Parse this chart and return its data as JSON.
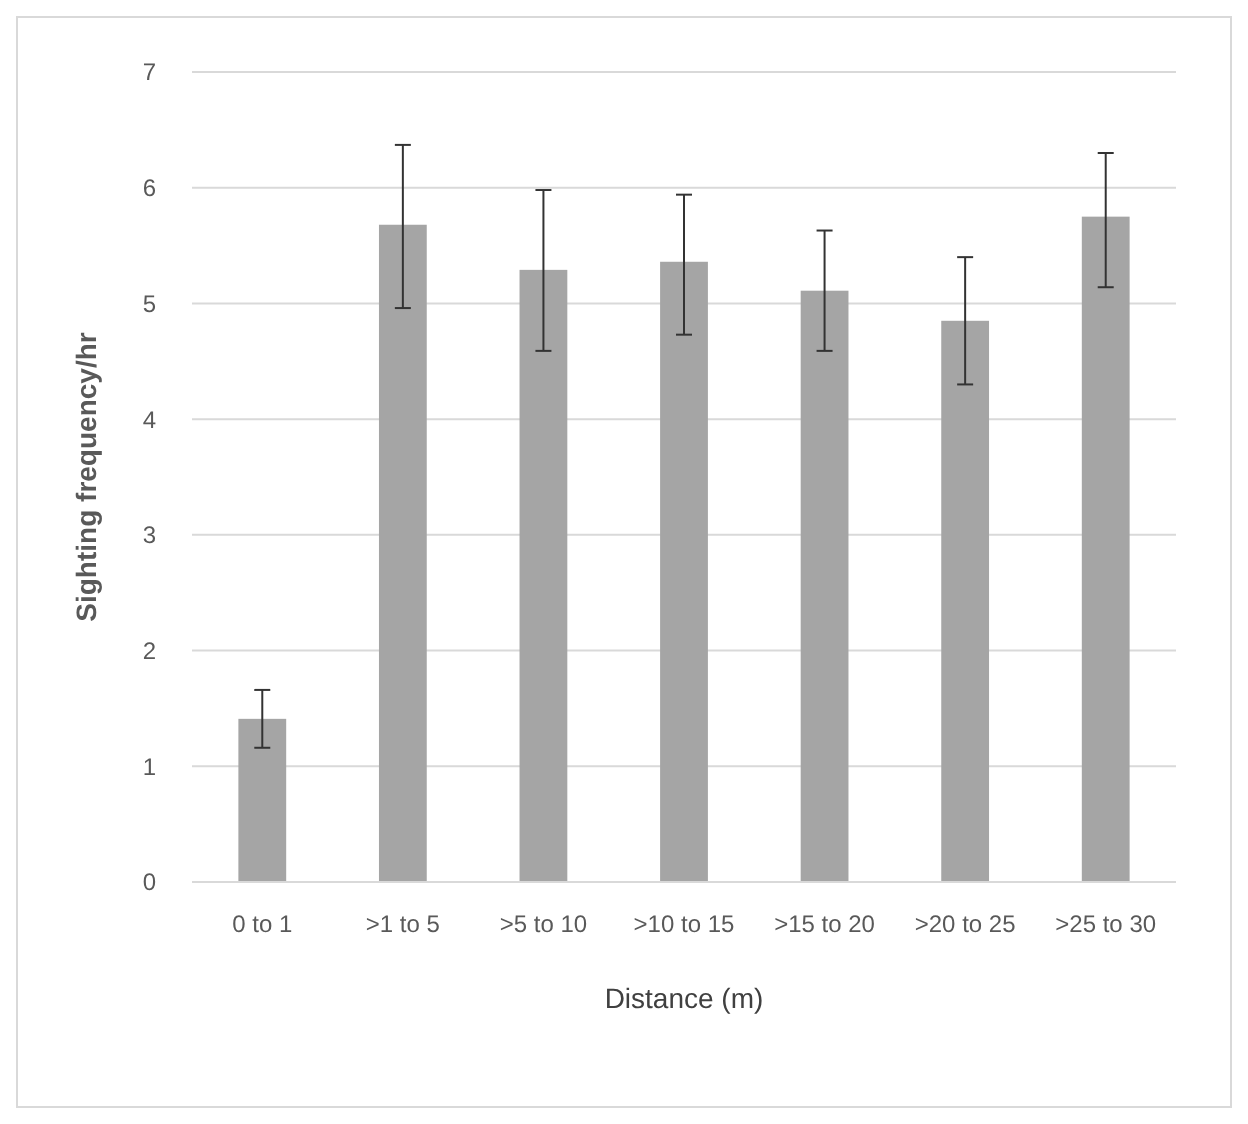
{
  "chart_data": {
    "type": "bar",
    "xlabel": "Distance (m)",
    "ylabel": "Sighting frequency/hr",
    "categories": [
      "0 to 1",
      ">1 to 5",
      ">5 to 10",
      ">10 to 15",
      ">15 to 20",
      ">20 to 25",
      ">25 to 30"
    ],
    "values": [
      1.41,
      5.68,
      5.29,
      5.36,
      5.11,
      4.85,
      5.75
    ],
    "errors": [
      [
        1.16,
        1.66
      ],
      [
        4.96,
        6.37
      ],
      [
        4.59,
        5.98
      ],
      [
        4.73,
        5.94
      ],
      [
        4.59,
        5.63
      ],
      [
        4.3,
        5.4
      ],
      [
        5.14,
        6.3
      ]
    ],
    "color": "#a5a5a5",
    "ylim": [
      0,
      7
    ],
    "yticks": [
      0,
      1,
      2,
      3,
      4,
      5,
      6,
      7
    ],
    "grid": "y"
  }
}
